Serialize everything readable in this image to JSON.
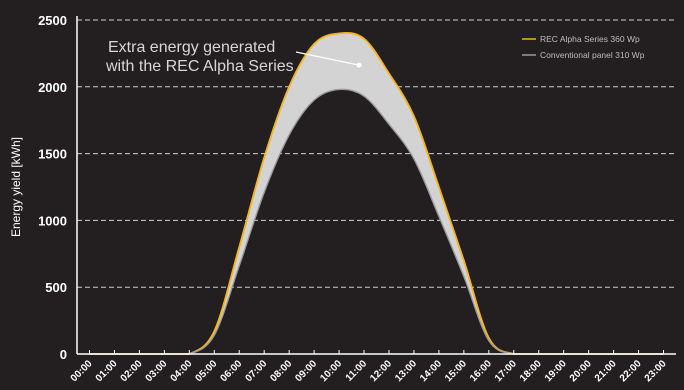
{
  "chart_data": {
    "type": "area",
    "ylabel": "Energy yield [kWh]",
    "xlabel": "",
    "ylim": [
      0,
      2500
    ],
    "yticks": [
      0,
      500,
      1000,
      1500,
      2000,
      2500
    ],
    "grid": "horizontal-dashed",
    "legend": "top-right",
    "categories": [
      "00:00",
      "01:00",
      "02:00",
      "03:00",
      "04:00",
      "05:00",
      "06:00",
      "07:00",
      "08:00",
      "09:00",
      "10:00",
      "11:00",
      "12:00",
      "13:00",
      "14:00",
      "15:00",
      "16:00",
      "17:00",
      "18:00",
      "19:00",
      "20:00",
      "21:00",
      "22:00",
      "23:00"
    ],
    "series": [
      {
        "name": "REC Alpha Series 360 Wp",
        "color": "#f5b316",
        "values": [
          0,
          0,
          0,
          0,
          0,
          170,
          800,
          1470,
          2000,
          2320,
          2400,
          2360,
          2100,
          1780,
          1250,
          700,
          120,
          0,
          0,
          0,
          0,
          0,
          0,
          0
        ]
      },
      {
        "name": "Conventional panel 310 Wp",
        "color": "#9a9a9a",
        "values": [
          0,
          0,
          0,
          0,
          0,
          140,
          660,
          1210,
          1640,
          1900,
          1980,
          1930,
          1720,
          1460,
          1030,
          580,
          100,
          0,
          0,
          0,
          0,
          0,
          0,
          0
        ]
      }
    ],
    "fill_between_color": "#d3d3d3",
    "annotation": {
      "lines": [
        "Extra energy generated",
        "with the REC Alpha Series"
      ],
      "point": {
        "x": "11:00",
        "y": 2200
      }
    }
  }
}
